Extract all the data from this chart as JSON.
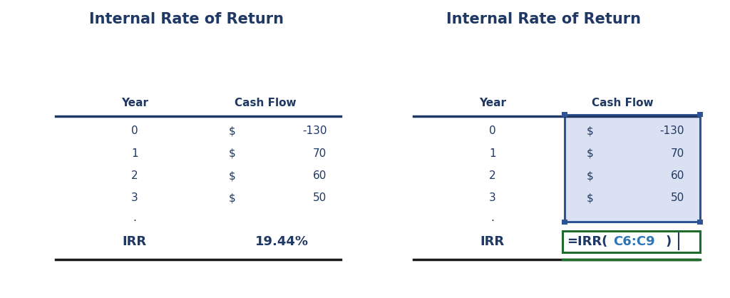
{
  "title": "Internal Rate of Return",
  "title_color": "#1F3864",
  "title_fontsize": 15,
  "header_year": "Year",
  "header_cashflow": "Cash Flow",
  "header_color": "#1F3864",
  "header_fontsize": 11,
  "years": [
    "0",
    "1",
    "2",
    "3"
  ],
  "cashflows": [
    "-130",
    "70",
    "60",
    "50"
  ],
  "data_color": "#1F3864",
  "data_fontsize": 11,
  "irr_label": "IRR",
  "irr_value_left": "19.44%",
  "irr_color": "#1F3864",
  "irr_fontsize": 12,
  "line_color_dark": "#1F3864",
  "line_color_black": "#1a1a1a",
  "highlight_fill": "#D9E1F2",
  "highlight_border": "#2F5496",
  "formula_box_color": "#1F6B2B",
  "formula_ref_color": "#2E75B6",
  "bg_color": "#FFFFFF",
  "dot_color": "#1F3864",
  "handle_color": "#2F5496"
}
